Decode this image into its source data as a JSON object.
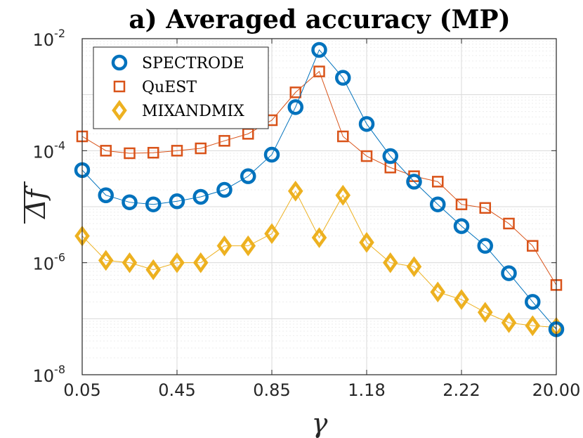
{
  "chart_data": {
    "type": "line",
    "title": "a) Averaged accuracy (MP)",
    "xlabel": "γ",
    "ylabel": "Δf",
    "yscale": "log",
    "ylim": [
      1e-08,
      0.01
    ],
    "y_ticks": [
      {
        "base": "10",
        "exp": "-8"
      },
      {
        "base": "10",
        "exp": "-6"
      },
      {
        "base": "10",
        "exp": "-4"
      },
      {
        "base": "10",
        "exp": "-2"
      }
    ],
    "x_tick_labels": [
      "0.05",
      "0.45",
      "0.85",
      "1.18",
      "2.22",
      "20.00"
    ],
    "grid": true,
    "legend_position": "top-left",
    "x_index": [
      0,
      1,
      2,
      3,
      4,
      5,
      6,
      7,
      8,
      9,
      10,
      11,
      12,
      13,
      14,
      15,
      16,
      17,
      18,
      19,
      20
    ],
    "series": [
      {
        "name": "SPECTRODE",
        "color": "#0072BD",
        "marker": "circle",
        "values": [
          4.5e-05,
          1.6e-05,
          1.2e-05,
          1.1e-05,
          1.25e-05,
          1.5e-05,
          2e-05,
          3.5e-05,
          8.5e-05,
          0.0006,
          0.0063,
          0.002,
          0.0003,
          8e-05,
          2.8e-05,
          1.1e-05,
          4.5e-06,
          2e-06,
          6.5e-07,
          2e-07,
          6.5e-08
        ]
      },
      {
        "name": "QuEST",
        "color": "#D95319",
        "marker": "square",
        "values": [
          0.00018,
          0.0001,
          9e-05,
          9.2e-05,
          0.0001,
          0.00011,
          0.00015,
          0.0002,
          0.00035,
          0.0011,
          0.0026,
          0.00018,
          8e-05,
          5e-05,
          3.5e-05,
          2.8e-05,
          1.1e-05,
          9.5e-06,
          5e-06,
          2e-06,
          4e-07
        ]
      },
      {
        "name": "MIXANDMIX",
        "color": "#EDB120",
        "marker": "diamond",
        "values": [
          3e-06,
          1.1e-06,
          1e-06,
          7.5e-07,
          1e-06,
          1e-06,
          2e-06,
          2e-06,
          3.3e-06,
          1.9e-05,
          2.8e-06,
          1.6e-05,
          2.3e-06,
          1e-06,
          8.5e-07,
          3e-07,
          2.2e-07,
          1.3e-07,
          8.5e-08,
          7.5e-08,
          7e-08
        ]
      }
    ]
  }
}
